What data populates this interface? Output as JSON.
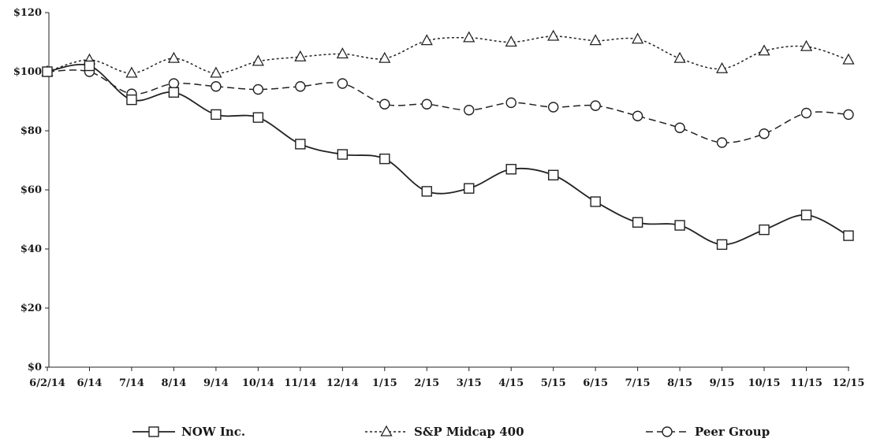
{
  "chart_data": {
    "type": "line",
    "categories": [
      "6/2/14",
      "6/14",
      "7/14",
      "8/14",
      "9/14",
      "10/14",
      "11/14",
      "12/14",
      "1/15",
      "2/15",
      "3/15",
      "4/15",
      "5/15",
      "6/15",
      "7/15",
      "8/15",
      "9/15",
      "10/15",
      "11/15",
      "12/15"
    ],
    "y_ticks": [
      "$0",
      "$20",
      "$40",
      "$60",
      "$80",
      "$100",
      "$120"
    ],
    "ylim": [
      0,
      120
    ],
    "title": "",
    "xlabel": "",
    "ylabel": "",
    "grid": false,
    "legend_position": "bottom",
    "series": [
      {
        "name": "NOW Inc.",
        "marker": "square",
        "dash": "solid",
        "values": [
          100,
          102,
          90.5,
          93,
          85.5,
          84.5,
          75.5,
          72,
          70.5,
          59.5,
          60.5,
          67,
          65,
          56,
          49,
          48,
          41.5,
          46.5,
          51.5,
          44.5
        ]
      },
      {
        "name": "S&P Midcap 400",
        "marker": "triangle",
        "dash": "dotted",
        "values": [
          100,
          104,
          99.5,
          104.5,
          99.5,
          103.5,
          105,
          106,
          104.5,
          110.5,
          111.5,
          110,
          112,
          110.5,
          111,
          104.5,
          101,
          107,
          108.5,
          104
        ]
      },
      {
        "name": "Peer Group",
        "marker": "circle",
        "dash": "dashed",
        "values": [
          100,
          100,
          92.5,
          96,
          95,
          94,
          95,
          96,
          89,
          89,
          87,
          89.5,
          88,
          88.5,
          85,
          81,
          76,
          79,
          86,
          85.5
        ]
      }
    ]
  }
}
